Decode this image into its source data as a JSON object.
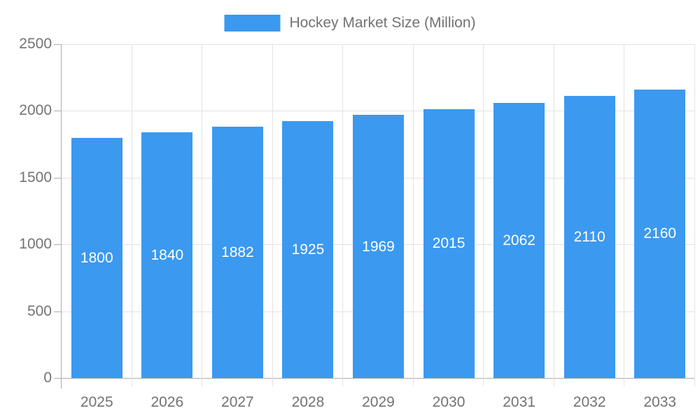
{
  "chart_data": {
    "type": "bar",
    "title": "Hockey Market Size (Million)",
    "categories": [
      "2025",
      "2026",
      "2027",
      "2028",
      "2029",
      "2030",
      "2031",
      "2032",
      "2033"
    ],
    "values": [
      1800,
      1840,
      1882,
      1925,
      1969,
      2015,
      2062,
      2110,
      2160
    ],
    "xlabel": "",
    "ylabel": "",
    "y_ticks": [
      0,
      500,
      1000,
      1500,
      2000,
      2500
    ],
    "ylim": [
      0,
      2500
    ],
    "grid": true,
    "legend_position": "top-center",
    "colors": {
      "bar": "#3B99F0",
      "bar_label_text": "#FFFFFF",
      "axis_text": "#737373",
      "grid_line": "#E3E3E3",
      "axis_line": "#ADADAD",
      "background": "#FFFFFF"
    }
  }
}
